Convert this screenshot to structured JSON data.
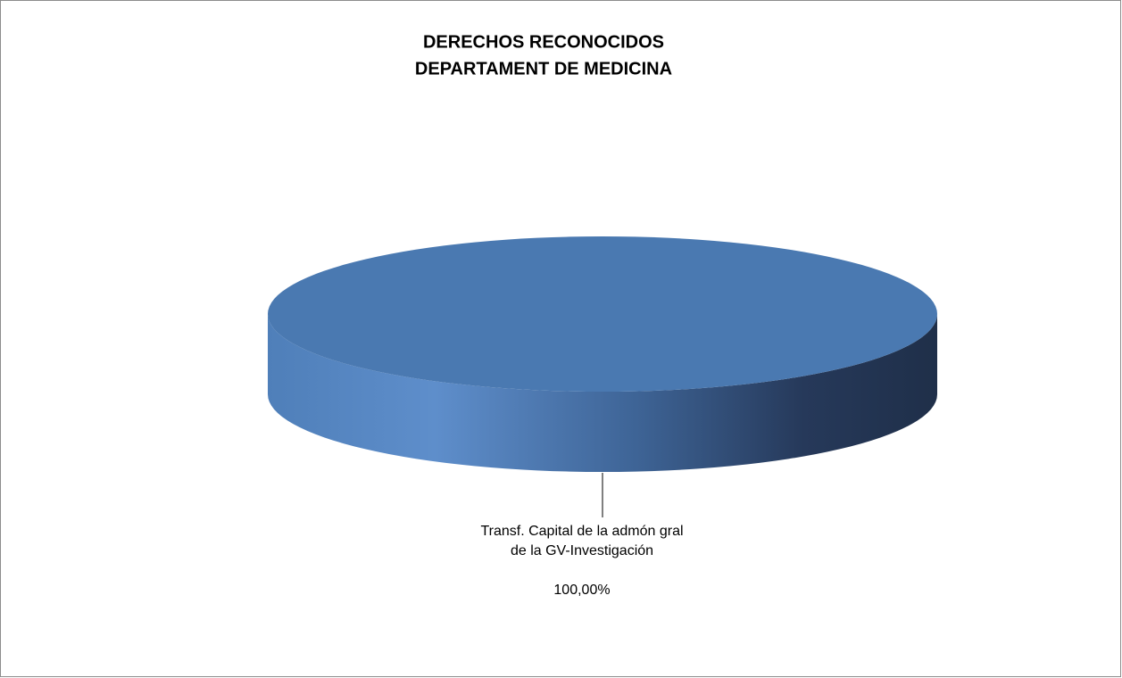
{
  "chart_data": {
    "type": "pie",
    "title": [
      "DERECHOS RECONOCIDOS",
      "DEPARTAMENT DE MEDICINA"
    ],
    "categories": [
      "Transf. Capital de la admón gral de la GV-Investigación"
    ],
    "values": [
      100
    ],
    "value_labels": [
      "100,00%"
    ],
    "colors": [
      "#4a79b1"
    ]
  }
}
